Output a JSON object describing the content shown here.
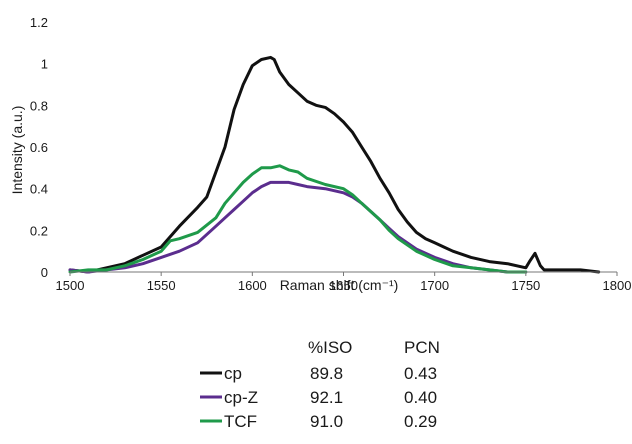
{
  "chart_data": {
    "type": "line",
    "title": "",
    "xlabel": "Raman shift (cm⁻¹)",
    "ylabel": "Intensity (a.u.)",
    "xlim": [
      1500,
      1800
    ],
    "ylim": [
      0,
      1.2
    ],
    "xticks": [
      1500,
      1550,
      1600,
      1650,
      1700,
      1750,
      1800
    ],
    "yticks": [
      0,
      0.2,
      0.4,
      0.6,
      0.8,
      1,
      1.2
    ],
    "xtick_labels": [
      "1500",
      "1550",
      "1600",
      "1650",
      "1700",
      "1750",
      "1800"
    ],
    "ytick_labels": [
      "0",
      "0.2",
      "0.4",
      "0.6",
      "0.8",
      "1",
      "1.2"
    ],
    "grid": false,
    "legend_placement": "bottom-center",
    "series": [
      {
        "name": "cp",
        "color": "#111111",
        "x": [
          1500,
          1510,
          1520,
          1530,
          1540,
          1550,
          1560,
          1570,
          1575,
          1580,
          1585,
          1590,
          1595,
          1600,
          1605,
          1610,
          1612,
          1615,
          1620,
          1625,
          1630,
          1635,
          1640,
          1645,
          1650,
          1655,
          1660,
          1665,
          1670,
          1675,
          1680,
          1685,
          1690,
          1695,
          1700,
          1705,
          1710,
          1720,
          1730,
          1740,
          1750,
          1752,
          1755,
          1758,
          1760,
          1770,
          1780,
          1790
        ],
        "y": [
          0.01,
          0.0,
          0.02,
          0.04,
          0.08,
          0.12,
          0.22,
          0.31,
          0.36,
          0.48,
          0.6,
          0.78,
          0.9,
          0.99,
          1.02,
          1.03,
          1.02,
          0.96,
          0.9,
          0.86,
          0.82,
          0.8,
          0.79,
          0.76,
          0.72,
          0.67,
          0.6,
          0.53,
          0.45,
          0.38,
          0.3,
          0.24,
          0.19,
          0.16,
          0.14,
          0.12,
          0.1,
          0.07,
          0.05,
          0.04,
          0.02,
          0.05,
          0.09,
          0.03,
          0.01,
          0.01,
          0.01,
          0.0
        ]
      },
      {
        "name": "cp-Z",
        "color": "#5b2d8e",
        "x": [
          1500,
          1510,
          1520,
          1530,
          1540,
          1550,
          1560,
          1570,
          1580,
          1585,
          1590,
          1595,
          1600,
          1605,
          1610,
          1615,
          1620,
          1625,
          1630,
          1640,
          1650,
          1655,
          1660,
          1665,
          1670,
          1675,
          1680,
          1690,
          1700,
          1710,
          1720,
          1730,
          1740,
          1750
        ],
        "y": [
          0.01,
          0.0,
          0.01,
          0.02,
          0.04,
          0.07,
          0.1,
          0.14,
          0.22,
          0.26,
          0.3,
          0.34,
          0.38,
          0.41,
          0.43,
          0.43,
          0.43,
          0.42,
          0.41,
          0.4,
          0.38,
          0.36,
          0.33,
          0.29,
          0.25,
          0.21,
          0.17,
          0.11,
          0.07,
          0.04,
          0.02,
          0.01,
          0.0,
          0.0
        ]
      },
      {
        "name": "TCF",
        "color": "#1f9a4a",
        "x": [
          1500,
          1510,
          1520,
          1530,
          1540,
          1550,
          1555,
          1560,
          1570,
          1580,
          1585,
          1590,
          1595,
          1600,
          1605,
          1610,
          1615,
          1620,
          1625,
          1630,
          1640,
          1650,
          1655,
          1660,
          1665,
          1670,
          1675,
          1680,
          1690,
          1700,
          1710,
          1720,
          1730,
          1740,
          1750
        ],
        "y": [
          0.0,
          0.01,
          0.01,
          0.03,
          0.06,
          0.1,
          0.15,
          0.16,
          0.19,
          0.26,
          0.33,
          0.38,
          0.43,
          0.47,
          0.5,
          0.5,
          0.51,
          0.49,
          0.48,
          0.45,
          0.42,
          0.4,
          0.37,
          0.33,
          0.29,
          0.25,
          0.2,
          0.16,
          0.1,
          0.06,
          0.03,
          0.02,
          0.01,
          0.0,
          0.0
        ]
      }
    ]
  },
  "table": {
    "headers": [
      "%ISO",
      "PCN"
    ],
    "rows": [
      {
        "label": "cp",
        "iso": "89.8",
        "pcn": "0.43",
        "color": "#111111"
      },
      {
        "label": "cp-Z",
        "iso": "92.1",
        "pcn": "0.40",
        "color": "#5b2d8e"
      },
      {
        "label": "TCF",
        "iso": "91.0",
        "pcn": "0.29",
        "color": "#1f9a4a"
      }
    ]
  }
}
